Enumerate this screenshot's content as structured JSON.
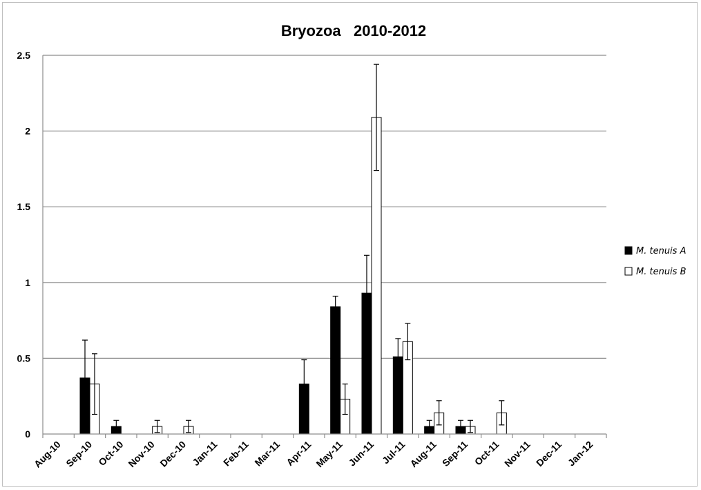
{
  "chart_data": {
    "type": "bar",
    "title": "Bryozoa   2010-2012",
    "xlabel": "",
    "ylabel": "",
    "ylim": [
      0,
      2.5
    ],
    "yticks": [
      "0",
      "0.5",
      "1",
      "1.5",
      "2",
      "2.5"
    ],
    "grid": true,
    "legend_position": "right",
    "categories": [
      "Aug-10",
      "Sep-10",
      "Oct-10",
      "Nov-10",
      "Dec-10",
      "Jan-11",
      "Feb-11",
      "Mar-11",
      "Apr-11",
      "May-11",
      "Jun-11",
      "Jul-11",
      "Aug-11",
      "Sep-11",
      "Oct-11",
      "Nov-11",
      "Dec-11",
      "Jan-12"
    ],
    "series": [
      {
        "name": "M. tenuis A",
        "color": "#000000",
        "values": [
          0,
          0.37,
          0.05,
          0,
          0,
          0,
          0,
          0,
          0.33,
          0.84,
          0.93,
          0.51,
          0.05,
          0.05,
          0,
          0,
          0,
          0
        ],
        "errors": [
          0,
          0.25,
          0.04,
          0,
          0,
          0,
          0,
          0,
          0.16,
          0.07,
          0.25,
          0.12,
          0.04,
          0.04,
          0,
          0,
          0,
          0
        ]
      },
      {
        "name": "M. tenuis B",
        "color": "#ffffff",
        "values": [
          0,
          0.33,
          0,
          0.05,
          0.05,
          0,
          0,
          0,
          0,
          0.23,
          2.09,
          0.61,
          0.14,
          0.05,
          0.14,
          0,
          0,
          0
        ],
        "errors": [
          0,
          0.2,
          0,
          0.04,
          0.04,
          0,
          0,
          0,
          0,
          0.1,
          0.35,
          0.12,
          0.08,
          0.04,
          0.08,
          0,
          0,
          0
        ]
      }
    ]
  }
}
